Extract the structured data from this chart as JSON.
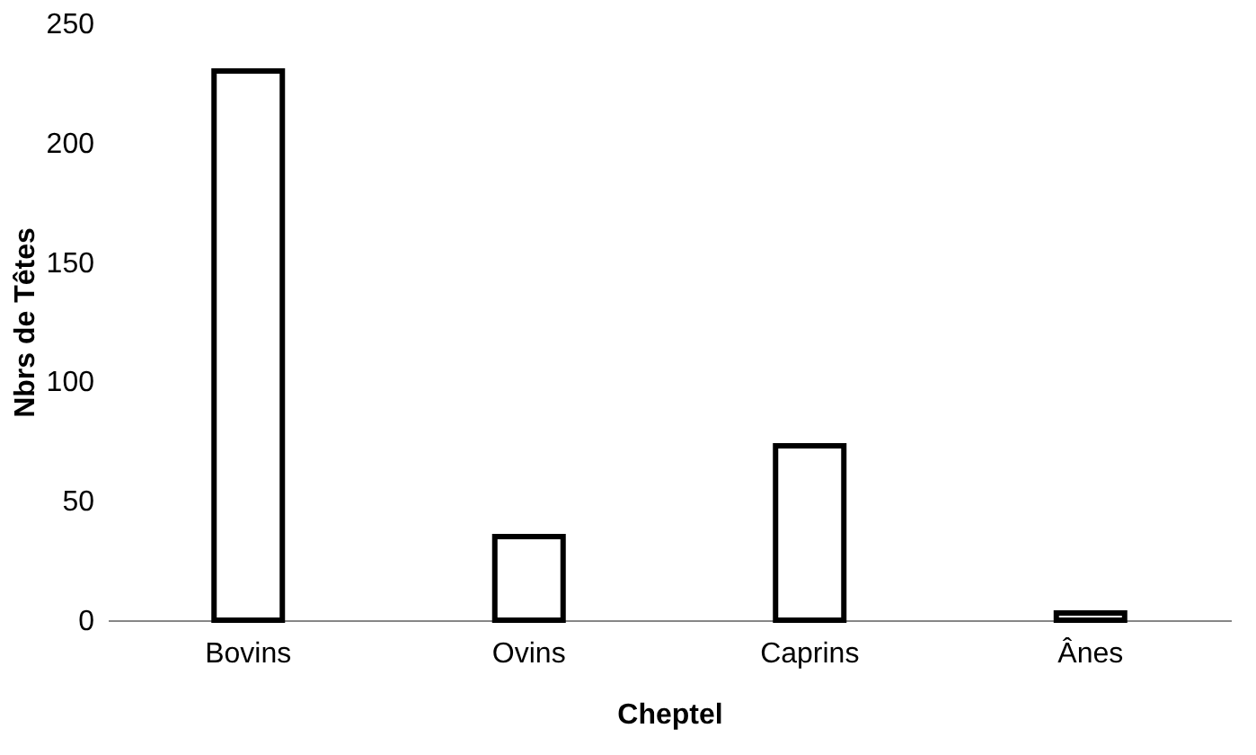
{
  "chart_data": {
    "type": "bar",
    "xlabel": "Cheptel",
    "ylabel": "Nbrs de Têtes",
    "categories": [
      "Bovins",
      "Ovins",
      "Caprins",
      "Ânes"
    ],
    "values": [
      230,
      35,
      73,
      3
    ],
    "color": "#ffffff",
    "ylim": [
      0,
      250
    ],
    "yticks": [
      0,
      50,
      100,
      150,
      200,
      250
    ],
    "grid": false
  }
}
